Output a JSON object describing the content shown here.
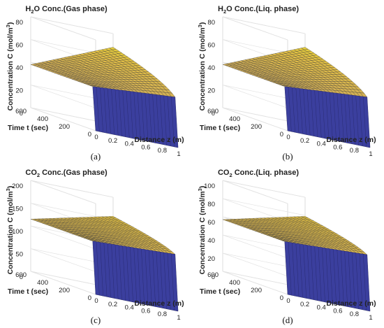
{
  "chart_data": [
    {
      "type": "surface",
      "caption": "(a)",
      "title_pre": "H",
      "title_sub": "2",
      "title_post": "O Conc.(Gas phase)",
      "zlabel": "Concentration C (mol/m",
      "zlabel_sup": "3",
      "zlabel_end": ")",
      "xlabel": "Distance z (m)",
      "ylabel": "Time t (sec)",
      "xlim": [
        0,
        1
      ],
      "ylim": [
        0,
        600
      ],
      "zlim": [
        0,
        80
      ],
      "x_ticks": [
        "0",
        "0.2",
        "0.4",
        "0.6",
        "0.8",
        "1"
      ],
      "y_ticks": [
        "0",
        "200",
        "400",
        "600"
      ],
      "z_ticks": [
        "0",
        "20",
        "40",
        "60",
        "80"
      ],
      "surface": {
        "value_at_inlet": 38,
        "value_at_outlet_t600": 68,
        "steady_at_outlet": 55,
        "initial_value": 0
      }
    },
    {
      "type": "surface",
      "caption": "(b)",
      "title_pre": "H",
      "title_sub": "2",
      "title_post": "O Conc.(Liq. phase)",
      "zlabel": "Concentration C (mol/m",
      "zlabel_sup": "3",
      "zlabel_end": ")",
      "xlabel": "Distance z (m)",
      "ylabel": "Time t (sec)",
      "xlim": [
        0,
        1
      ],
      "ylim": [
        0,
        600
      ],
      "zlim": [
        0,
        80
      ],
      "x_ticks": [
        "0",
        "0.2",
        "0.4",
        "0.6",
        "0.8",
        "1"
      ],
      "y_ticks": [
        "0",
        "200",
        "400",
        "600"
      ],
      "z_ticks": [
        "0",
        "20",
        "40",
        "60",
        "80"
      ],
      "surface": {
        "value_at_inlet": 38,
        "value_at_outlet_t600": 68,
        "steady_at_outlet": 55,
        "initial_value": 0
      }
    },
    {
      "type": "surface",
      "caption": "(c)",
      "title_pre": "CO",
      "title_sub": "2",
      "title_post": " Conc.(Gas phase)",
      "zlabel": "Concentration C (mol/m",
      "zlabel_sup": "3",
      "zlabel_end": ")",
      "xlabel": "Distance z (m)",
      "ylabel": "Time t (sec)",
      "xlim": [
        0,
        1
      ],
      "ylim": [
        0,
        600
      ],
      "zlim": [
        0,
        200
      ],
      "x_ticks": [
        "0",
        "0.2",
        "0.4",
        "0.6",
        "0.8",
        "1"
      ],
      "y_ticks": [
        "0",
        "200",
        "400",
        "600"
      ],
      "z_ticks": [
        "0",
        "50",
        "100",
        "150",
        "200"
      ],
      "surface": {
        "value_at_inlet": 115,
        "value_at_outlet_t600": 158,
        "steady_at_outlet": 130,
        "initial_value": 0
      }
    },
    {
      "type": "surface",
      "caption": "(d)",
      "title_pre": "CO",
      "title_sub": "2",
      "title_post": " Conc.(Liq. phase)",
      "zlabel": "Concentration C (mol/m",
      "zlabel_sup": "3",
      "zlabel_end": ")",
      "xlabel": "Distance z (m)",
      "ylabel": "Time t (sec)",
      "xlim": [
        0,
        1
      ],
      "ylim": [
        0,
        600
      ],
      "zlim": [
        0,
        100
      ],
      "x_ticks": [
        "0",
        "0.2",
        "0.4",
        "0.6",
        "0.8",
        "1"
      ],
      "y_ticks": [
        "0",
        "200",
        "400",
        "600"
      ],
      "z_ticks": [
        "0",
        "20",
        "40",
        "60",
        "80",
        "100"
      ],
      "surface": {
        "value_at_inlet": 57,
        "value_at_outlet_t600": 79,
        "steady_at_outlet": 65,
        "initial_value": 0
      }
    }
  ]
}
